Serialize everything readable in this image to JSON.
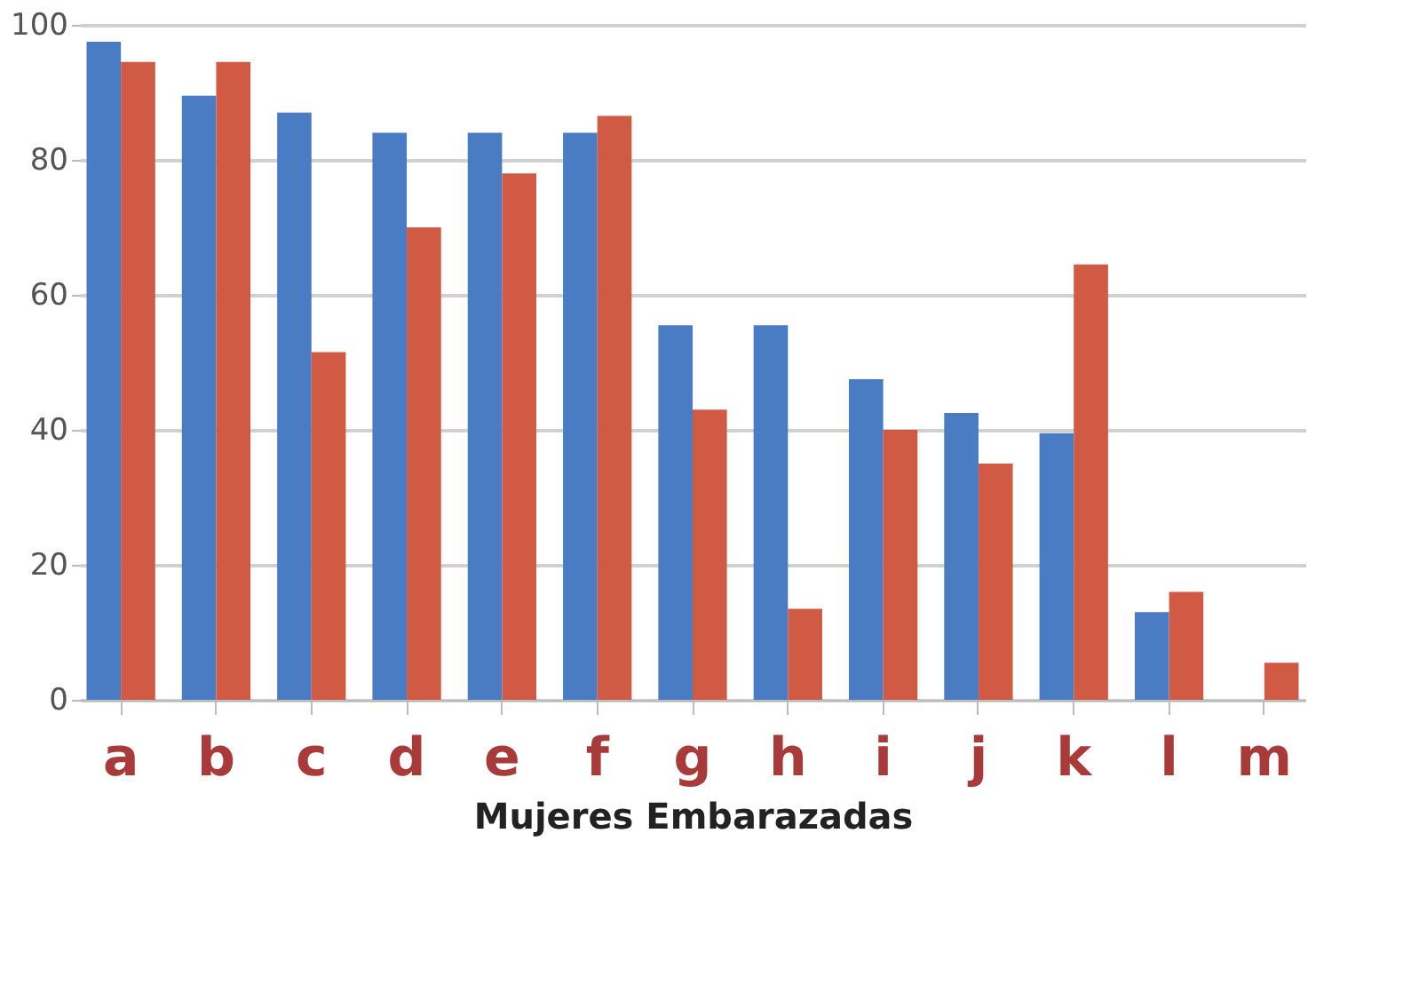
{
  "chart_data": {
    "type": "bar",
    "xlabel": "Mujeres Embarazadas",
    "categories": [
      "a",
      "b",
      "c",
      "d",
      "e",
      "f",
      "g",
      "h",
      "i",
      "j",
      "k",
      "l",
      "m"
    ],
    "series": [
      {
        "color": "#4a7cc4",
        "values": [
          97.5,
          89.5,
          87,
          84,
          84,
          84,
          55.5,
          55.5,
          47.5,
          42.5,
          39.5,
          13,
          null
        ]
      },
      {
        "color": "#d05a44",
        "values": [
          94.5,
          94.5,
          51.5,
          70,
          78,
          86.5,
          43,
          13.5,
          40,
          35,
          64.5,
          16,
          5.5
        ]
      }
    ],
    "ylim": [
      0,
      100
    ],
    "yticks": [
      0,
      20,
      40,
      60,
      80,
      100
    ],
    "grid": "y"
  }
}
